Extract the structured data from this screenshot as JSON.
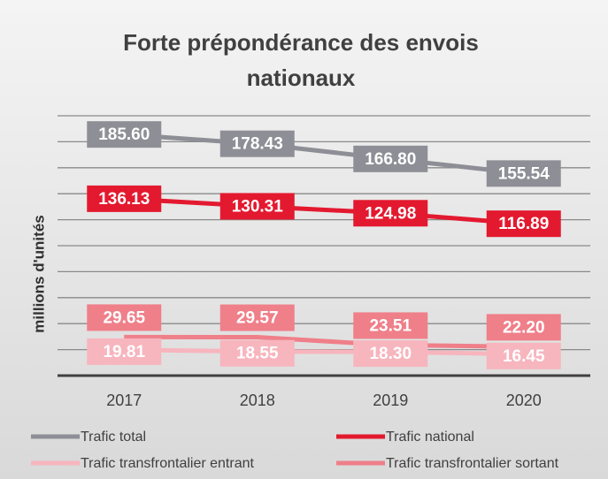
{
  "chart_data": {
    "type": "line",
    "title": "Forte prépondérance des envois nationaux",
    "ylabel": "millions d'unités",
    "categories": [
      "2017",
      "2018",
      "2019",
      "2020"
    ],
    "series": [
      {
        "name": "Trafic total",
        "color": "#8e8e96",
        "values": [
          185.6,
          178.43,
          166.8,
          155.54
        ],
        "value_labels": [
          "185.60",
          "178.43",
          "166.80",
          "155.54"
        ]
      },
      {
        "name": "Trafic national",
        "color": "#e3192f",
        "values": [
          136.13,
          130.31,
          124.98,
          116.89
        ],
        "value_labels": [
          "136.13",
          "130.31",
          "124.98",
          "116.89"
        ]
      },
      {
        "name": "Trafic transfrontalier entrant",
        "color": "#f7b5be",
        "values": [
          19.81,
          18.55,
          18.3,
          16.45
        ],
        "value_labels": [
          "19.81",
          "18.55",
          "18.30",
          "16.45"
        ]
      },
      {
        "name": "Trafic transfrontalier sortant",
        "color": "#ef7f89",
        "values": [
          29.65,
          29.57,
          23.51,
          22.2
        ],
        "value_labels": [
          "29.65",
          "29.57",
          "23.51",
          "22.20"
        ]
      }
    ],
    "ylim": [
      0,
      200
    ],
    "yticks": [
      0,
      20,
      40,
      60,
      80,
      100,
      120,
      140,
      160,
      180,
      200
    ],
    "grid": true
  }
}
